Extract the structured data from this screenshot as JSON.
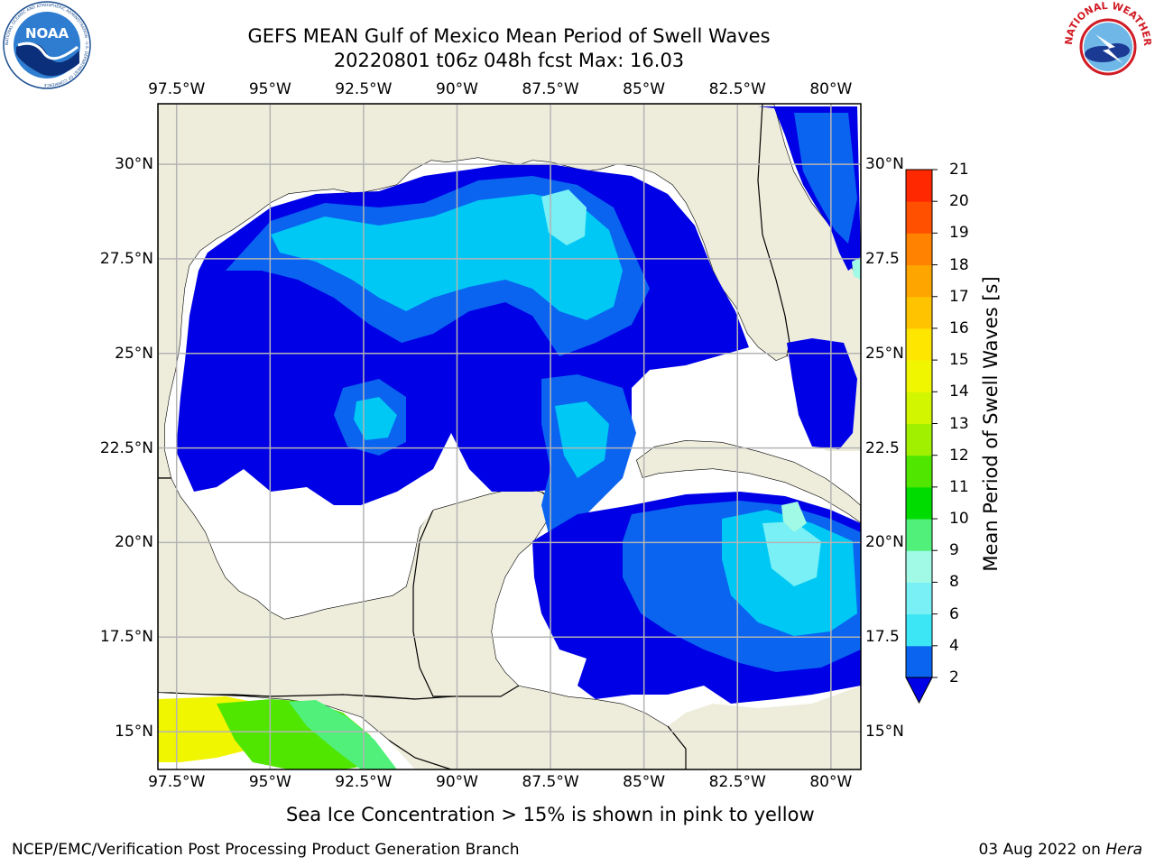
{
  "title": {
    "line1": "GEFS MEAN Gulf of Mexico Mean Period of Swell Waves",
    "line2": "20220801 t06z 048h fcst   Max: 16.03"
  },
  "logos": {
    "noaa_text": "NOAA",
    "noaa_ring": "NATIONAL OCEANIC AND ATMOSPHERIC ADMINISTRATION · U.S. DEPARTMENT OF COMMERCE",
    "nws_ring": "NATIONAL WEATHER SERVICE"
  },
  "axes": {
    "lon_labels": [
      "97.5°W",
      "95°W",
      "92.5°W",
      "90°W",
      "87.5°W",
      "85°W",
      "82.5°W",
      "80°W"
    ],
    "lat_labels_left": [
      "30°N",
      "27.5°N",
      "25°N",
      "22.5°N",
      "20°N",
      "17.5°N",
      "15°N"
    ],
    "lat_labels_right": [
      "30°N",
      "27.5",
      "25°N",
      "22.5",
      "20°N",
      "17.5",
      "15°N"
    ],
    "lon_range": [
      -98,
      -79.2
    ],
    "lat_range": [
      14,
      31.6
    ]
  },
  "colorbar": {
    "label": "Mean Period of Swell Waves [s]",
    "ticks": [
      "2",
      "4",
      "6",
      "8",
      "9",
      "10",
      "11",
      "12",
      "13",
      "14",
      "15",
      "16",
      "17",
      "18",
      "19",
      "20",
      "21"
    ],
    "colors": [
      "#0a64f0",
      "#00c8f5",
      "#3ce6f5",
      "#78f0f5",
      "#a0fae6",
      "#50f07a",
      "#00dc00",
      "#50e600",
      "#a0f000",
      "#d2f500",
      "#f0f500",
      "#ffe600",
      "#ffc300",
      "#ffa500",
      "#ff8200",
      "#ff5000",
      "#ff2800",
      "#ff0000"
    ],
    "extend_color": "#0000e6"
  },
  "colors": {
    "land": "#eeeddc",
    "ocean_no_data": "#ffffff",
    "grid": "#b4b4b4"
  },
  "footer": {
    "note": "Sea Ice Concentration > 15% is shown in pink to yellow",
    "left": "NCEP/EMC/Verification Post Processing Product Generation Branch",
    "right_prefix": "03 Aug 2022 on ",
    "right_italic": "Hera"
  }
}
